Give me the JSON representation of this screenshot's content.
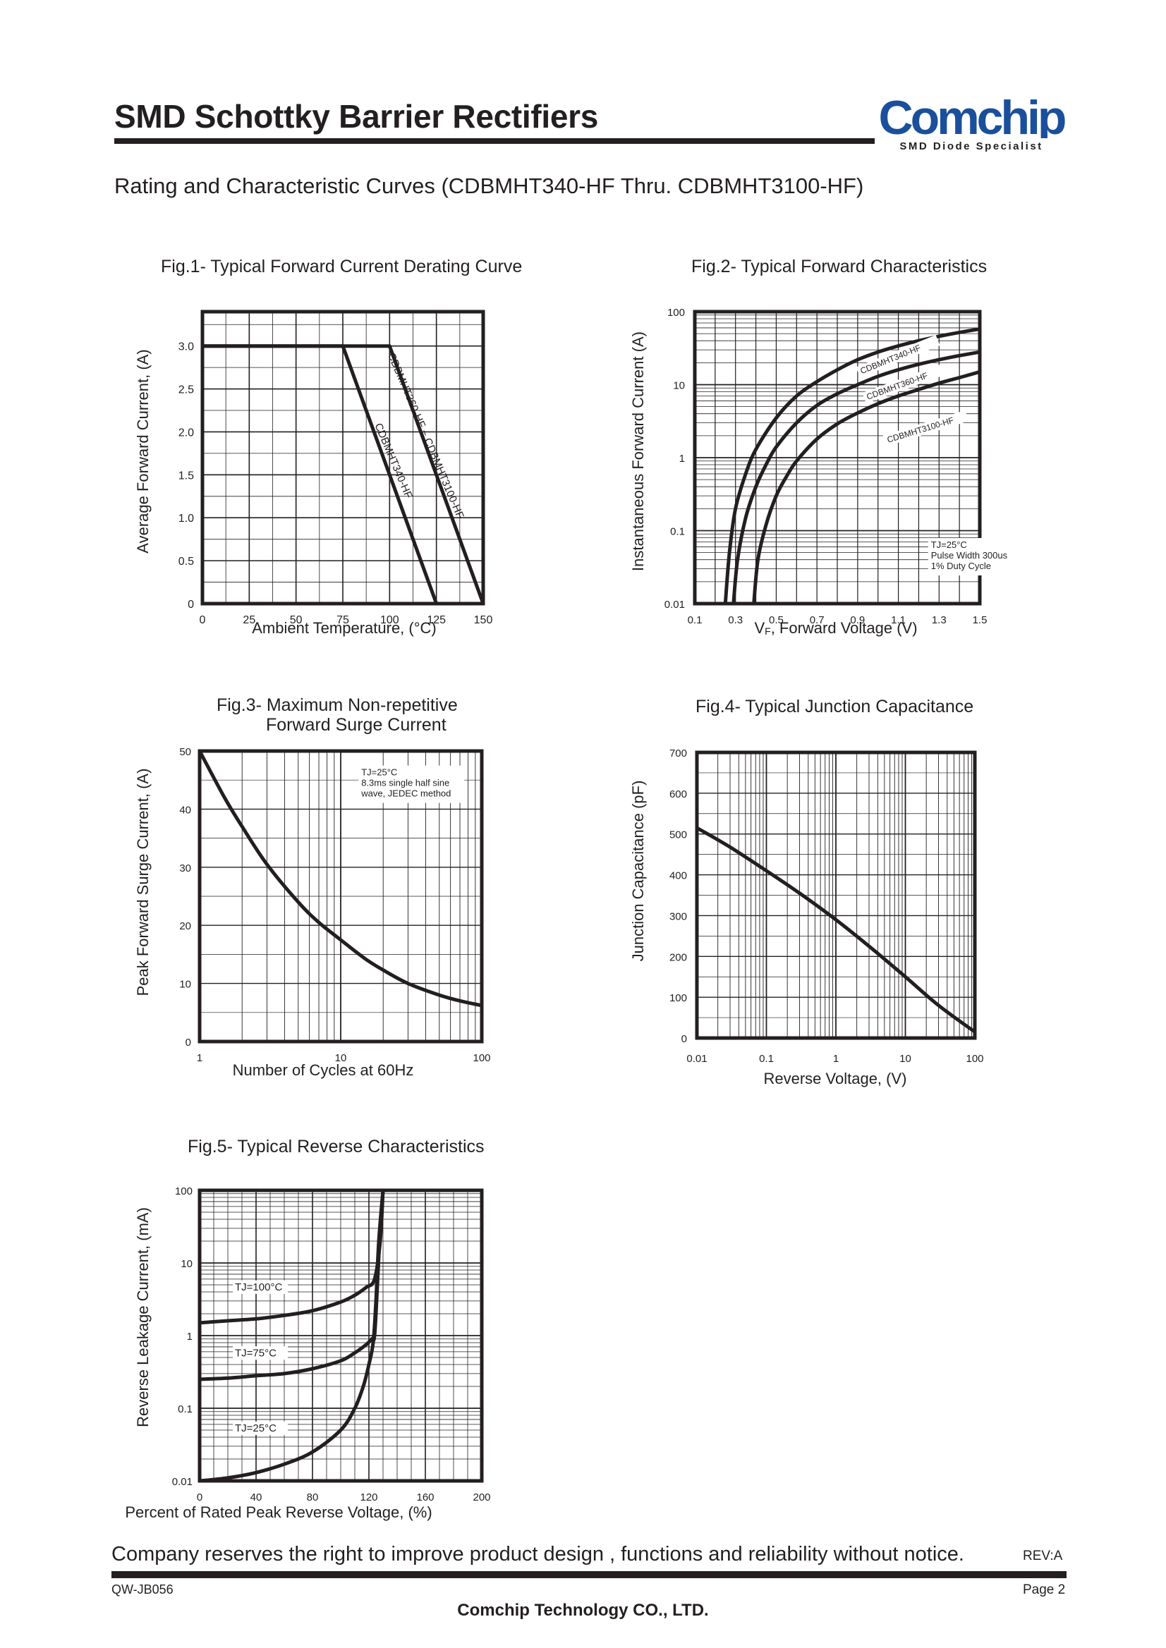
{
  "header": {
    "title": "SMD Schottky Barrier Rectifiers",
    "subtitle": "Rating and Characteristic Curves (CDBMHT340-HF Thru. CDBMHT3100-HF)",
    "logo_text": "Comchip",
    "logo_tagline": "SMD Diode Specialist",
    "logo_color": "#1a4f9c"
  },
  "footer": {
    "note": "Company reserves the right to improve product design , functions and reliability without notice.",
    "rev": "REV:A",
    "code": "QW-JB056",
    "page": "Page 2",
    "company": "Comchip Technology CO., LTD."
  },
  "chart_data": [
    {
      "id": "fig1",
      "type": "line",
      "title": "Fig.1- Typical Forward Current Derating Curve",
      "xlabel": "Ambient Temperature, (°C)",
      "ylabel": "Average Forward Current, (A)",
      "xlim": [
        0,
        150
      ],
      "ylim": [
        0,
        3.4
      ],
      "xticks": [
        "0",
        "25",
        "50",
        "75",
        "100",
        "125",
        "150"
      ],
      "yticks": [
        "0",
        "0.5",
        "1.0",
        "1.5",
        "2.0",
        "2.5",
        "3.0"
      ],
      "grid": true,
      "series": [
        {
          "name": "CDBMHT340-HF",
          "x": [
            0,
            75,
            125
          ],
          "y": [
            3.0,
            3.0,
            0
          ]
        },
        {
          "name": "CDBMHT360-HF ~ CDBMHT3100-HF",
          "x": [
            0,
            100,
            150
          ],
          "y": [
            3.0,
            3.0,
            0
          ]
        }
      ]
    },
    {
      "id": "fig2",
      "type": "line",
      "title": "Fig.2- Typical Forward Characteristics",
      "xlabel": "VF, Forward Voltage (V)",
      "xlabel_main": "V",
      "xlabel_sub": "F",
      "xlabel_rest": ", Forward Voltage (V)",
      "ylabel": "Instantaneous Forward Current (A)",
      "xlim": [
        0.1,
        1.5
      ],
      "ylim": [
        0.01,
        100
      ],
      "yscale": "log",
      "xticks": [
        "0.1",
        "0.3",
        "0.5",
        "0.7",
        "0.9",
        "1.1",
        "1.3",
        "1.5"
      ],
      "yticks": [
        "0.01",
        "0.1",
        "1",
        "10",
        "100"
      ],
      "grid": true,
      "annotation": [
        "TJ=25°C",
        "Pulse Width 300us",
        "1% Duty Cycle"
      ],
      "series": [
        {
          "name": "CDBMHT340-HF",
          "x": [
            0.25,
            0.27,
            0.3,
            0.35,
            0.4,
            0.5,
            0.6,
            0.7,
            0.8,
            0.9,
            1.0,
            1.1,
            1.2,
            1.3,
            1.4,
            1.5
          ],
          "y": [
            0.01,
            0.05,
            0.2,
            0.6,
            1.3,
            3.5,
            7,
            11,
            16,
            22,
            28,
            34,
            40,
            46,
            52,
            58
          ]
        },
        {
          "name": "CDBMHT360-HF",
          "x": [
            0.29,
            0.31,
            0.35,
            0.4,
            0.45,
            0.5,
            0.6,
            0.7,
            0.8,
            0.9,
            1.0,
            1.1,
            1.2,
            1.3,
            1.4,
            1.5
          ],
          "y": [
            0.01,
            0.04,
            0.15,
            0.4,
            0.8,
            1.4,
            3,
            5.2,
            7.5,
            10,
            13,
            16,
            19,
            22,
            25,
            28
          ]
        },
        {
          "name": "CDBMHT3100-HF",
          "x": [
            0.39,
            0.41,
            0.45,
            0.5,
            0.55,
            0.6,
            0.7,
            0.8,
            0.9,
            1.0,
            1.1,
            1.2,
            1.3,
            1.4,
            1.5
          ],
          "y": [
            0.01,
            0.04,
            0.12,
            0.3,
            0.55,
            0.9,
            1.8,
            2.9,
            4.1,
            5.5,
            7,
            8.6,
            10.5,
            12.5,
            15
          ]
        }
      ]
    },
    {
      "id": "fig3",
      "type": "line",
      "title": "Fig.3- Maximum Non-repetitive",
      "title_line2": "Forward Surge Current",
      "xlabel": "Number of Cycles at 60Hz",
      "ylabel": "Peak Forward Surge Current, (A)",
      "xlim": [
        1,
        100
      ],
      "xscale": "log",
      "ylim": [
        0,
        50
      ],
      "xticks": [
        "1",
        "10",
        "100"
      ],
      "yticks": [
        "0",
        "10",
        "20",
        "30",
        "40",
        "50"
      ],
      "grid": true,
      "annotation": [
        "TJ=25°C",
        "8.3ms single half sine",
        "wave, JEDEC method"
      ],
      "series": [
        {
          "name": "",
          "x": [
            1,
            1.5,
            2,
            3,
            5,
            7,
            10,
            15,
            20,
            30,
            50,
            70,
            100
          ],
          "y": [
            50,
            42,
            37,
            30.5,
            24,
            20.5,
            17.5,
            14.2,
            12.3,
            10,
            8,
            7,
            6.2
          ]
        }
      ]
    },
    {
      "id": "fig4",
      "type": "line",
      "title": "Fig.4- Typical Junction Capacitance",
      "xlabel": "Reverse Voltage, (V)",
      "ylabel": "Junction Capacitance (pF)",
      "xlim": [
        0.01,
        100
      ],
      "xscale": "log",
      "ylim": [
        0,
        700
      ],
      "xticks": [
        "0.01",
        "0.1",
        "1",
        "10",
        "100"
      ],
      "yticks": [
        "0",
        "100",
        "200",
        "300",
        "400",
        "500",
        "600",
        "700"
      ],
      "grid": true,
      "series": [
        {
          "name": "",
          "x": [
            0.01,
            0.03,
            0.1,
            0.3,
            1,
            3,
            10,
            30,
            100
          ],
          "y": [
            515,
            468,
            410,
            355,
            290,
            225,
            150,
            80,
            15
          ]
        }
      ]
    },
    {
      "id": "fig5",
      "type": "line",
      "title": "Fig.5- Typical Reverse Characteristics",
      "xlabel": "Percent of Rated Peak Reverse Voltage, (%)",
      "ylabel": "Reverse  Leakage Current, (mA)",
      "xlim": [
        0,
        200
      ],
      "ylim": [
        0.01,
        100
      ],
      "yscale": "log",
      "xticks": [
        "0",
        "40",
        "80",
        "120",
        "160",
        "200"
      ],
      "yticks": [
        "0.01",
        "0.1",
        "1",
        "10",
        "100"
      ],
      "grid": true,
      "series": [
        {
          "name": "TJ=100°C",
          "x": [
            0,
            20,
            40,
            60,
            80,
            100,
            110,
            118,
            124,
            128,
            130
          ],
          "y": [
            1.5,
            1.6,
            1.7,
            1.9,
            2.2,
            2.9,
            3.6,
            4.6,
            6,
            20,
            100
          ]
        },
        {
          "name": "TJ=75°C",
          "x": [
            0,
            20,
            40,
            60,
            80,
            100,
            110,
            118,
            122,
            124,
            126,
            128,
            130
          ],
          "y": [
            0.25,
            0.26,
            0.28,
            0.3,
            0.35,
            0.45,
            0.58,
            0.75,
            0.9,
            1.0,
            5,
            30,
            100
          ]
        },
        {
          "name": "TJ=25°C",
          "x": [
            0,
            20,
            40,
            60,
            80,
            100,
            110,
            116,
            120,
            123,
            125,
            127,
            130
          ],
          "y": [
            0.01,
            0.011,
            0.013,
            0.017,
            0.025,
            0.05,
            0.1,
            0.2,
            0.4,
            0.8,
            3,
            20,
            100
          ]
        }
      ]
    }
  ]
}
